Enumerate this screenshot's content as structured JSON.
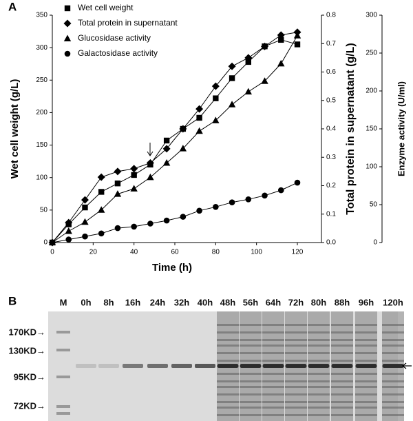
{
  "panels": {
    "a": "A",
    "b": "B"
  },
  "chart_data": {
    "type": "line",
    "xlabel": "Time (h)",
    "ylabel": "Wet cell weight (g/L)",
    "y2label": "Total protein in supernatant (g/L)",
    "y3label": "Enzyme activity (U/ml)",
    "x": [
      0,
      8,
      16,
      24,
      32,
      40,
      48,
      56,
      64,
      72,
      80,
      88,
      96,
      104,
      112,
      120
    ],
    "xlim": [
      0,
      120
    ],
    "xticks": [
      0,
      20,
      40,
      60,
      80,
      100,
      120
    ],
    "ylim": [
      0,
      350
    ],
    "yticks": [
      0,
      50,
      100,
      150,
      200,
      250,
      300,
      350
    ],
    "y2lim": [
      0,
      0.8
    ],
    "y2ticks": [
      {
        "value": 0,
        "label": "0.0"
      },
      0.1,
      0.2,
      0.3,
      0.4,
      0.5,
      0.6,
      0.7,
      0.8
    ],
    "y3lim": [
      0,
      300
    ],
    "y3ticks": [
      0,
      50,
      100,
      150,
      200,
      250,
      300
    ],
    "legend": "upper left",
    "series": [
      {
        "name": "Wet cell weight",
        "color": "#000000",
        "marker": "square",
        "axis": "y",
        "values": [
          0,
          28,
          54,
          78,
          91,
          104,
          120,
          157,
          175,
          192,
          222,
          253,
          278,
          302,
          312,
          305
        ]
      },
      {
        "name": "Total protein in supernatant",
        "color": "#000000",
        "marker": "diamond",
        "axis": "y2",
        "values": [
          0,
          0.07,
          0.15,
          0.23,
          0.25,
          0.26,
          0.28,
          0.33,
          0.4,
          0.47,
          0.55,
          0.62,
          0.65,
          0.69,
          0.73,
          0.74
        ]
      },
      {
        "name": "Glucosidase activity",
        "color": "#000000",
        "marker": "triangle",
        "axis": "y3",
        "values": [
          0,
          15,
          27,
          43,
          64,
          71,
          86,
          105,
          124,
          147,
          161,
          182,
          199,
          213,
          236,
          273
        ]
      },
      {
        "name": "Galactosidase activity",
        "color": "#000000",
        "marker": "circle",
        "axis": "y3",
        "values": [
          0,
          4,
          8,
          12,
          19,
          21,
          25,
          29,
          34,
          42,
          47,
          53,
          57,
          62,
          69,
          79
        ]
      }
    ]
  },
  "gel": {
    "lanes": [
      "M",
      "0h",
      "8h",
      "16h",
      "24h",
      "32h",
      "40h",
      "48h",
      "56h",
      "64h",
      "72h",
      "80h",
      "88h",
      "96h",
      "120h"
    ],
    "markers": [
      "170KD→",
      "130KD→",
      "95KD→",
      "72KD→"
    ]
  }
}
